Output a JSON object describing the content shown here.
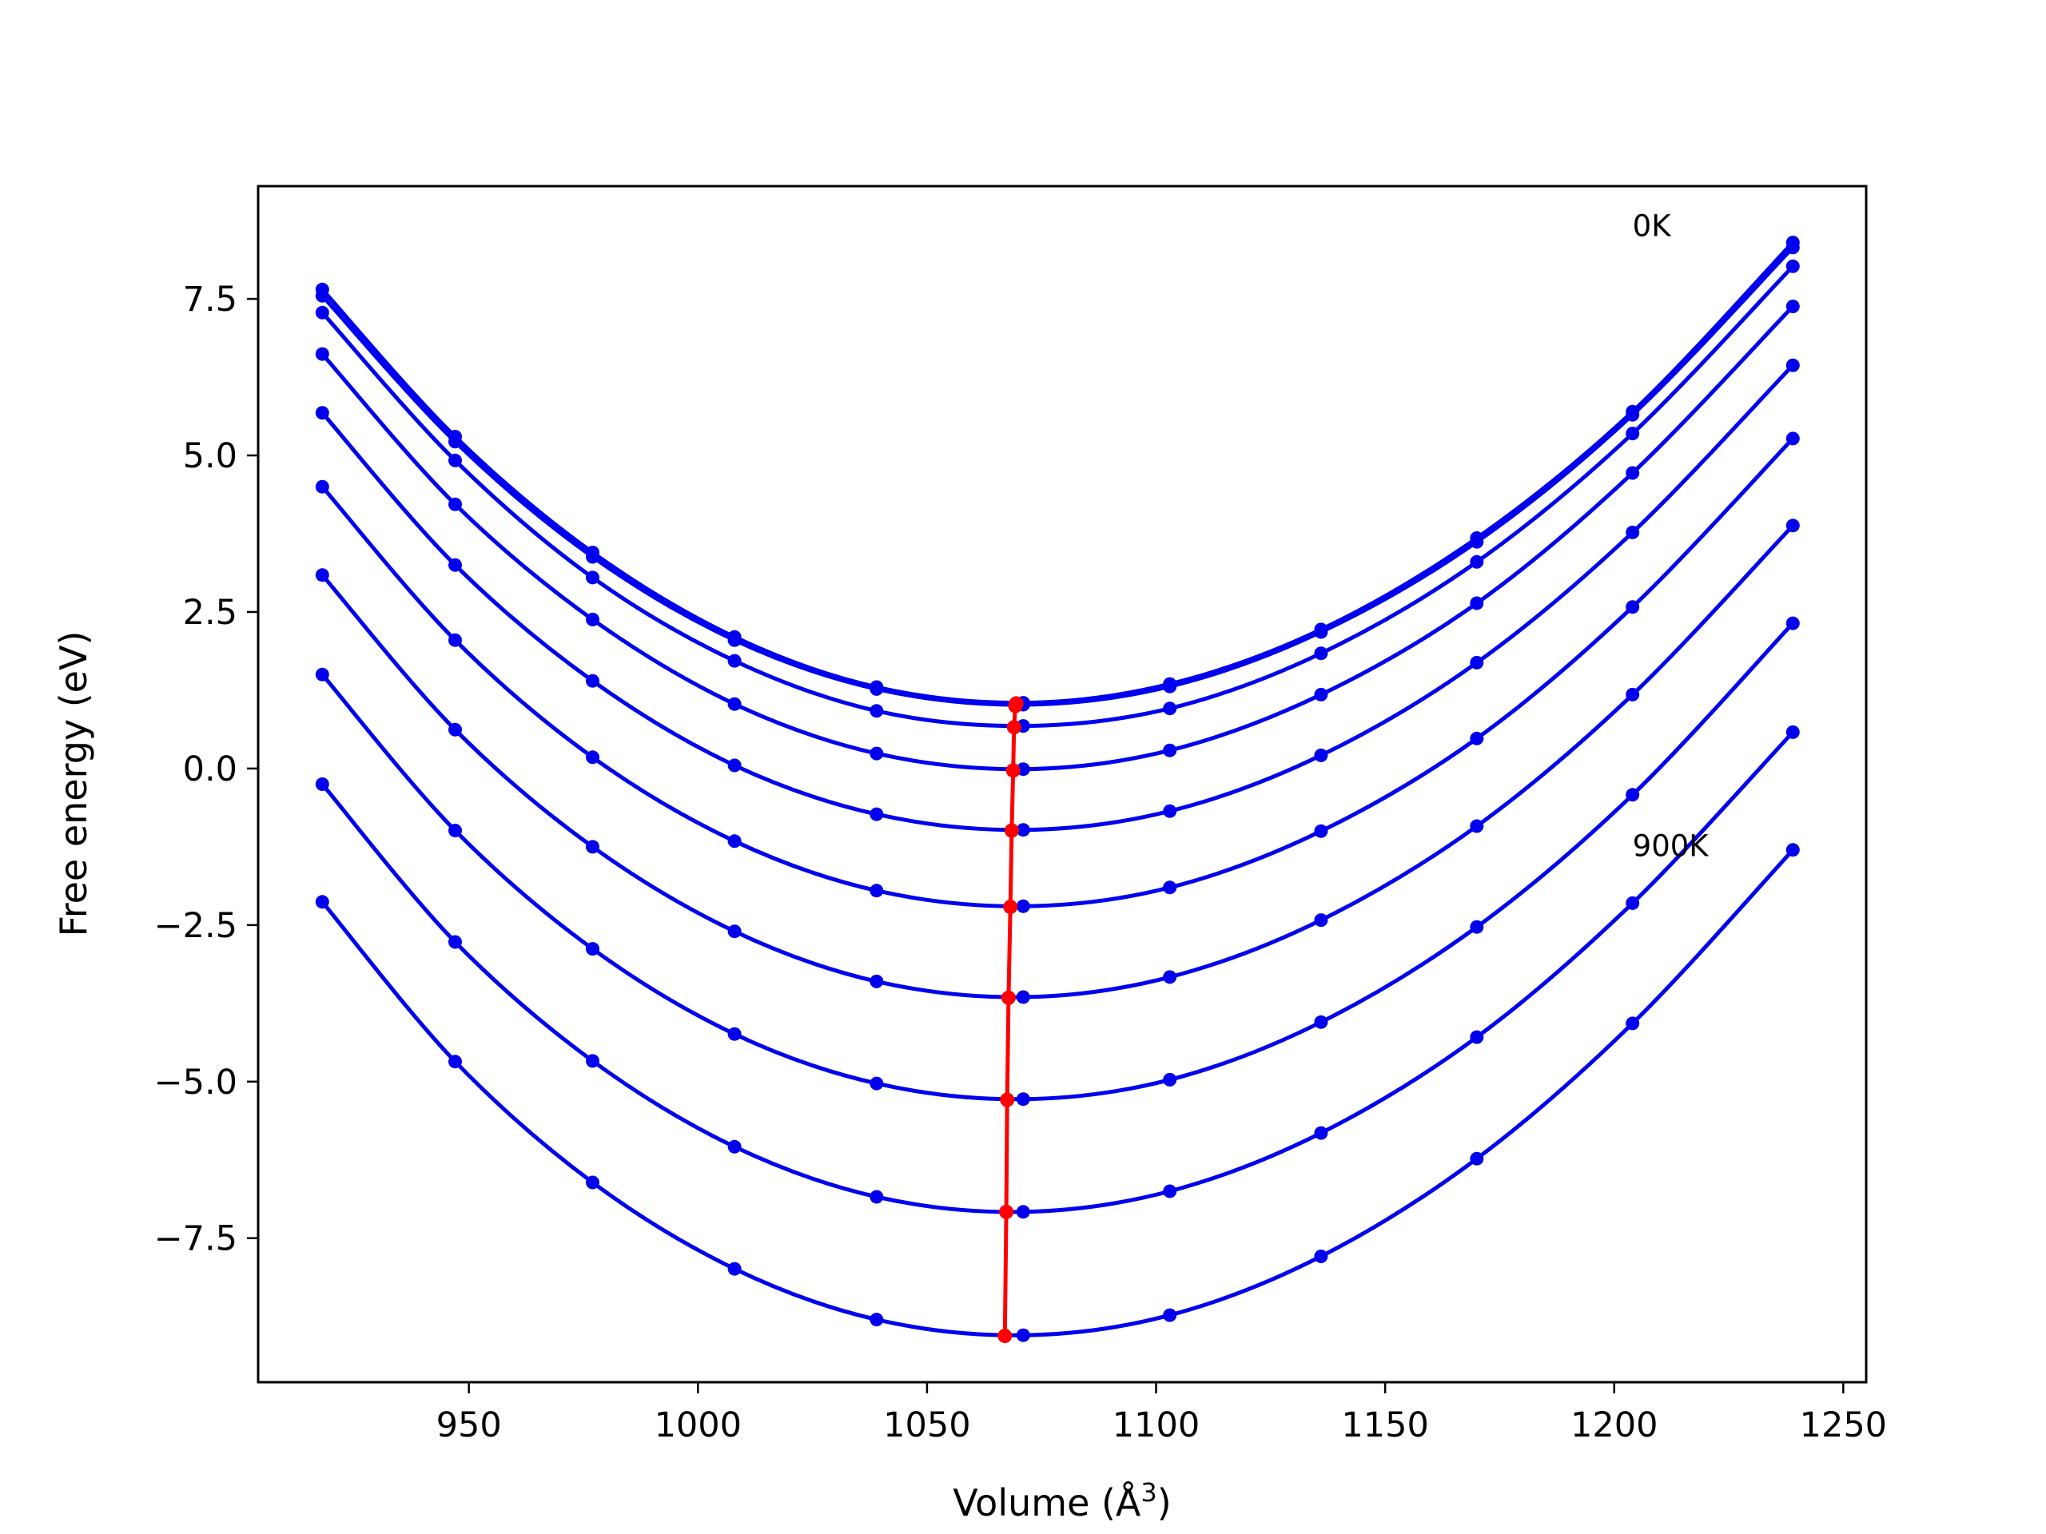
{
  "chart_data": {
    "type": "line",
    "title": "",
    "xlabel": "Volume (Å",
    "xlabel_sup": "3",
    "xlabel_close": ")",
    "ylabel": "Free energy (eV)",
    "xlim": [
      904,
      1255
    ],
    "ylim": [
      -9.8,
      9.3
    ],
    "xticks": [
      950,
      1000,
      1050,
      1100,
      1150,
      1200,
      1250
    ],
    "xtick_labels": [
      "950",
      "1000",
      "1050",
      "1100",
      "1150",
      "1200",
      "1250"
    ],
    "yticks": [
      7.5,
      5.0,
      2.5,
      0.0,
      -2.5,
      -5.0,
      -7.5
    ],
    "ytick_labels": [
      "7.5",
      "5.0",
      "2.5",
      "0.0",
      "−2.5",
      "−5.0",
      "−7.5"
    ],
    "grid": false,
    "legend": "none",
    "colors": {
      "curves": "#0000ee",
      "minimum": "#ff0000"
    },
    "annotations": [
      {
        "text": "0K",
        "x": 1204,
        "y": 8.5
      },
      {
        "text": "900K",
        "x": 1204,
        "y": -1.4
      }
    ],
    "volume_points": [
      918,
      947,
      977,
      1008,
      1039,
      1071,
      1103,
      1136,
      1170,
      1204,
      1239
    ],
    "series": [
      {
        "values": [
          7.65,
          5.3,
          3.45,
          2.1,
          1.3,
          1.05,
          1.35,
          2.22,
          3.68,
          5.7,
          8.4
        ],
        "v0": 1069.5,
        "f0": 1.04
      },
      {
        "values": [
          7.55,
          5.22,
          3.38,
          2.05,
          1.27,
          1.02,
          1.31,
          2.18,
          3.62,
          5.65,
          8.32
        ],
        "v0": 1069.3,
        "f0": 1.0
      },
      {
        "values": [
          7.28,
          4.92,
          3.05,
          1.72,
          0.92,
          0.68,
          0.96,
          1.84,
          3.3,
          5.35,
          8.02
        ],
        "v0": 1069.0,
        "f0": 0.66
      },
      {
        "values": [
          6.62,
          4.22,
          2.38,
          1.03,
          0.24,
          -0.01,
          0.29,
          1.18,
          2.64,
          4.72,
          7.38
        ],
        "v0": 1068.8,
        "f0": -0.03
      },
      {
        "values": [
          5.68,
          3.25,
          1.4,
          0.05,
          -0.73,
          -0.98,
          -0.68,
          0.21,
          1.69,
          3.77,
          6.44
        ],
        "v0": 1068.5,
        "f0": -0.99
      },
      {
        "values": [
          4.5,
          2.05,
          0.18,
          -1.16,
          -1.95,
          -2.2,
          -1.9,
          -1.0,
          0.48,
          2.58,
          5.27
        ],
        "v0": 1068.2,
        "f0": -2.21
      },
      {
        "values": [
          3.09,
          0.62,
          -1.25,
          -2.6,
          -3.4,
          -3.65,
          -3.33,
          -2.42,
          -0.92,
          1.18,
          3.88
        ],
        "v0": 1067.8,
        "f0": -3.66
      },
      {
        "values": [
          1.5,
          -0.99,
          -2.88,
          -4.24,
          -5.03,
          -5.28,
          -4.97,
          -4.05,
          -2.53,
          -0.42,
          2.32
        ],
        "v0": 1067.5,
        "f0": -5.29
      },
      {
        "values": [
          -0.25,
          -2.77,
          -4.67,
          -6.04,
          -6.84,
          -7.08,
          -6.75,
          -5.82,
          -4.29,
          -2.15,
          0.58
        ],
        "v0": 1067.3,
        "f0": -7.08
      },
      {
        "values": [
          -2.13,
          -4.68,
          -6.61,
          -7.99,
          -8.8,
          -9.05,
          -8.73,
          -7.79,
          -6.23,
          -4.07,
          -1.3
        ],
        "v0": 1067.0,
        "f0": -9.06
      }
    ]
  }
}
